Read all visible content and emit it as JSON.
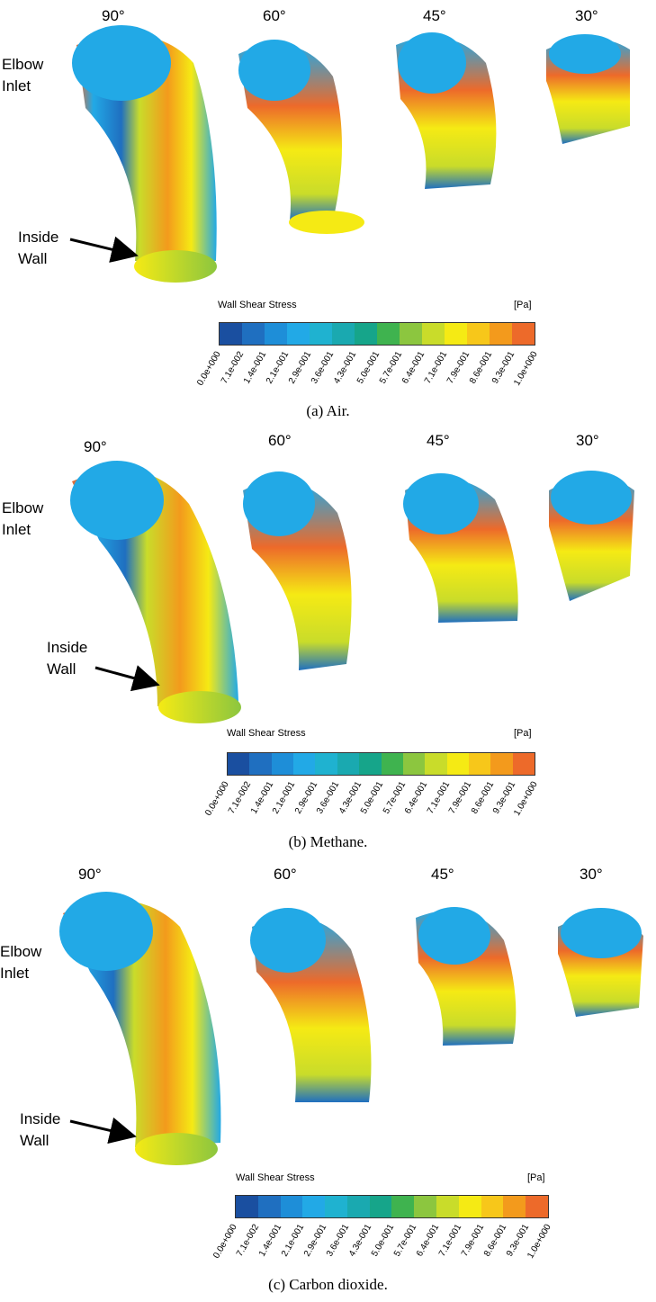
{
  "angles": [
    "90°",
    "60°",
    "45°",
    "30°"
  ],
  "labels": {
    "elbow_inlet": [
      "Elbow",
      "Inlet"
    ],
    "inside_wall": [
      "Inside",
      "Wall"
    ]
  },
  "colorbar": {
    "title": "Wall Shear Stress",
    "unit": "[Pa]",
    "ticks": [
      "0.0e+000",
      "7.1e-002",
      "1.4e-001",
      "2.1e-001",
      "2.9e-001",
      "3.6e-001",
      "4.3e-001",
      "5.0e-001",
      "5.7e-001",
      "6.4e-001",
      "7.1e-001",
      "7.9e-001",
      "8.6e-001",
      "9.3e-001",
      "1.0e+000"
    ],
    "colors": [
      "#1a4fa0",
      "#1f6fc0",
      "#1e8ed8",
      "#22a9e6",
      "#1fb2d0",
      "#1aa9b0",
      "#16a58a",
      "#3fb34f",
      "#8cc63f",
      "#c9dc2a",
      "#f5ea14",
      "#f7c71a",
      "#f39a1c",
      "#ed6a2a"
    ]
  },
  "captions": [
    "(a) Air.",
    "(b) Methane.",
    "(c) Carbon dioxide."
  ]
}
